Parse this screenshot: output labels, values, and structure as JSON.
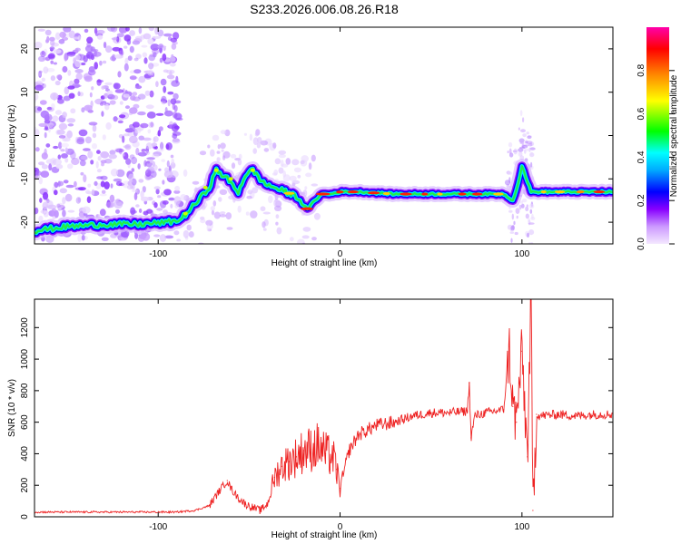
{
  "title": "S233.2026.006.08.26.R18",
  "chart_data": [
    {
      "type": "heatmap",
      "title": "S233.2026.006.08.26.R18",
      "xlabel": "Height of straight line (km)",
      "ylabel": "Frequency (Hz)",
      "xlim": [
        -168,
        150
      ],
      "ylim": [
        -25,
        25
      ],
      "x_ticks": [
        -100,
        0,
        100
      ],
      "y_ticks": [
        20,
        10,
        0,
        -10,
        -20
      ],
      "colorbar": {
        "label": "Normalized spectral amplitude",
        "range": [
          0,
          1
        ],
        "ticks": [
          "0.0",
          "0.2",
          "0.4",
          "0.6",
          "0.8"
        ],
        "colormap": [
          "#ffffff",
          "#cc99ff",
          "#8800ff",
          "#0000ff",
          "#00ffff",
          "#00ff00",
          "#ffff00",
          "#ff8800",
          "#ff0000",
          "#ff00aa"
        ]
      },
      "ridge": {
        "description": "dominant Doppler frequency trace",
        "x": [
          -168,
          -150,
          -130,
          -110,
          -95,
          -88,
          -80,
          -72,
          -68,
          -62,
          -56,
          -52,
          -48,
          -42,
          -36,
          -30,
          -24,
          -18,
          -14,
          -10,
          -5,
          0,
          10,
          30,
          50,
          70,
          90,
          95,
          98,
          100,
          105,
          120,
          150
        ],
        "y": [
          -22,
          -21,
          -20.5,
          -20.5,
          -20,
          -19.5,
          -16,
          -12,
          -8,
          -10,
          -13,
          -9,
          -8,
          -11,
          -12,
          -13,
          -14,
          -17,
          -15,
          -13.5,
          -13.5,
          -13,
          -13,
          -13.5,
          -13.5,
          -13.5,
          -13.5,
          -15,
          -11,
          -7,
          -13,
          -13,
          -13
        ]
      }
    },
    {
      "type": "line",
      "xlabel": "Height of straight line (km)",
      "ylabel": "SNR (10 * v/v)",
      "xlim": [
        -168,
        150
      ],
      "ylim": [
        0,
        1380
      ],
      "x_ticks": [
        -100,
        0,
        100
      ],
      "y_ticks": [
        0,
        200,
        400,
        600,
        800,
        1000,
        1200
      ],
      "series": [
        {
          "name": "SNR",
          "color": "#ee2222",
          "x": [
            -168,
            -150,
            -130,
            -110,
            -90,
            -80,
            -72,
            -66,
            -62,
            -60,
            -56,
            -52,
            -48,
            -44,
            -40,
            -36,
            -32,
            -28,
            -24,
            -20,
            -16,
            -12,
            -8,
            -4,
            -2,
            0,
            5,
            10,
            20,
            30,
            40,
            50,
            60,
            70,
            71,
            72,
            74,
            80,
            90,
            93,
            95,
            97,
            100,
            103,
            105,
            106,
            108,
            110,
            120,
            130,
            140,
            150
          ],
          "values": [
            30,
            30,
            30,
            30,
            30,
            40,
            70,
            170,
            230,
            180,
            120,
            80,
            60,
            40,
            80,
            250,
            320,
            350,
            380,
            420,
            430,
            450,
            400,
            380,
            300,
            180,
            420,
            520,
            580,
            600,
            640,
            660,
            660,
            670,
            850,
            500,
            640,
            660,
            680,
            1080,
            700,
            600,
            1050,
            380,
            1370,
            40,
            650,
            640,
            650,
            640,
            650,
            650
          ]
        }
      ]
    }
  ]
}
